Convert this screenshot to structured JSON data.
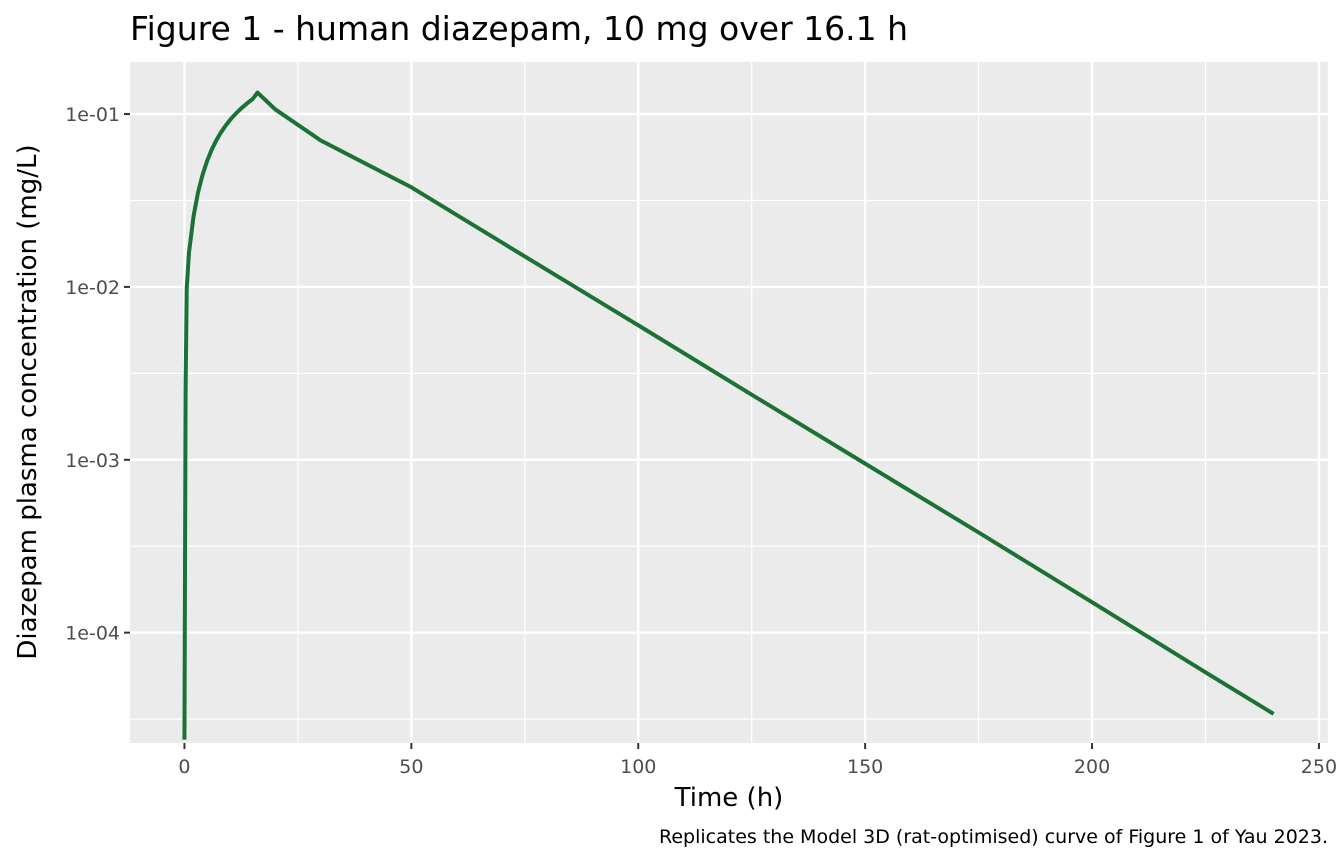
{
  "chart_data": {
    "type": "line",
    "title": "Figure 1 - human diazepam, 10 mg over 16.1 h",
    "xlabel": "Time (h)",
    "ylabel": "Diazepam plasma concentration (mg/L)",
    "caption": "Replicates the Model 3D (rat-optimised) curve of Figure 1 of Yau 2023.",
    "x_scale": "linear",
    "y_scale": "log10",
    "xlim": [
      -12,
      252
    ],
    "ylim": [
      2.3e-05,
      0.2
    ],
    "x_ticks": [
      0,
      50,
      100,
      150,
      200,
      250
    ],
    "x_tick_labels": [
      "0",
      "50",
      "100",
      "150",
      "200",
      "250"
    ],
    "y_ticks": [
      0.0001,
      0.001,
      0.01,
      0.1
    ],
    "y_tick_labels": [
      "1e-04",
      "1e-03",
      "1e-02",
      "1e-01"
    ],
    "grid": true,
    "line_color": "#1b7235",
    "panel_color": "#ebebeb",
    "grid_color": "#ffffff",
    "series": [
      {
        "x": [
          0,
          0.25,
          0.5,
          1,
          2,
          3,
          4,
          5,
          6,
          7,
          8,
          9,
          10,
          11,
          12,
          13,
          14,
          15,
          16.1,
          20,
          30,
          50,
          75,
          100,
          125,
          150,
          175,
          200,
          225,
          240
        ],
        "y": [
          2.4e-05,
          0.0025,
          0.0098,
          0.0158,
          0.0256,
          0.0353,
          0.0446,
          0.0536,
          0.0622,
          0.0703,
          0.078,
          0.0852,
          0.0921,
          0.0986,
          0.1048,
          0.1107,
          0.1164,
          0.1219,
          0.133,
          0.1065,
          0.0704,
          0.0377,
          0.015,
          0.006,
          0.00238,
          0.00095,
          0.00038,
          0.00015,
          5.9e-05,
          3.39e-05
        ]
      }
    ]
  }
}
